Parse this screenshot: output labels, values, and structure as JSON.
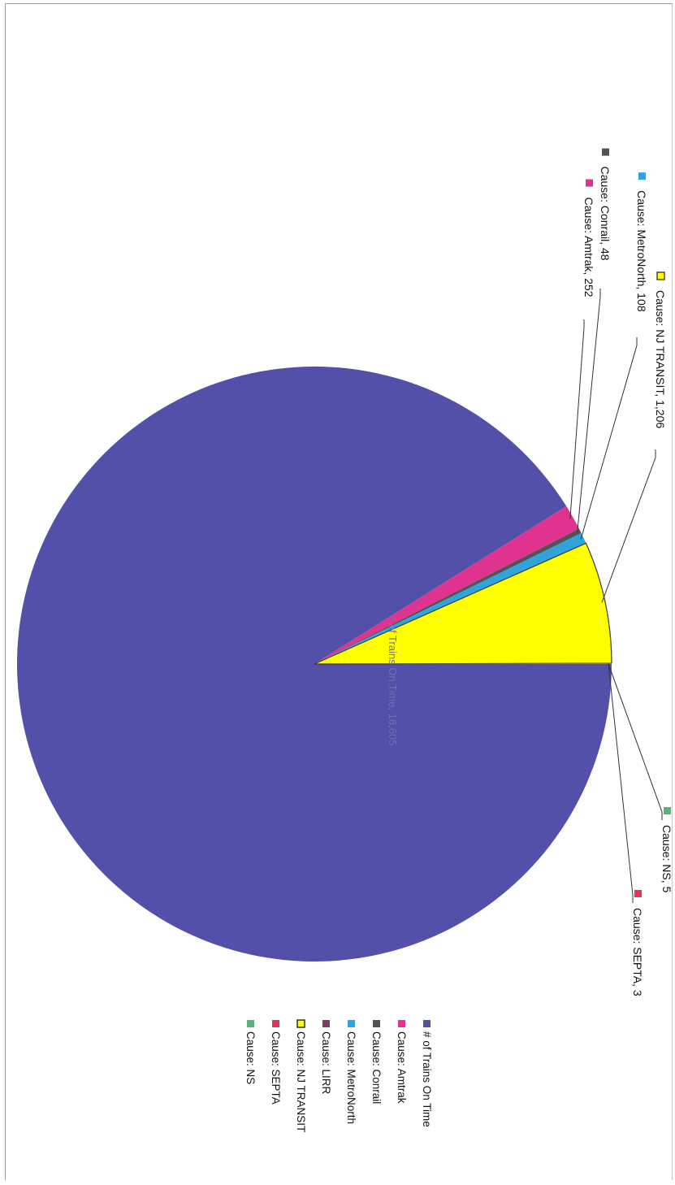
{
  "chart_data": {
    "type": "pie",
    "title": "",
    "series": [
      {
        "name": "# of Trains On Time",
        "value": 16605,
        "color": "#5250A8",
        "label": "# of Trains On Time, 16,605"
      },
      {
        "name": "Cause:  Amtrak",
        "value": 252,
        "color": "#E0338F",
        "label": "Cause:  Amtrak, 252"
      },
      {
        "name": "Cause:  Conrail",
        "value": 48,
        "color": "#4F5457",
        "label": "Cause:  Conrail, 48"
      },
      {
        "name": "Cause:  MetroNorth",
        "value": 108,
        "color": "#2FA4DA",
        "label": "Cause:  MetroNorth, 108"
      },
      {
        "name": "Cause:  LIRR",
        "value": 0,
        "color": "#7A3E68",
        "label": ""
      },
      {
        "name": "Cause:  NJ TRANSIT",
        "value": 1206,
        "color": "#FFFF00",
        "label": "Cause:  NJ TRANSIT, 1,206"
      },
      {
        "name": "Cause:  SEPTA",
        "value": 3,
        "color": "#E83254",
        "label": "Cause:  SEPTA, 3"
      },
      {
        "name": "Cause:  NS",
        "value": 5,
        "color": "#5DB07B",
        "label": "Cause:  NS, 5"
      }
    ],
    "legend_position": "right"
  }
}
